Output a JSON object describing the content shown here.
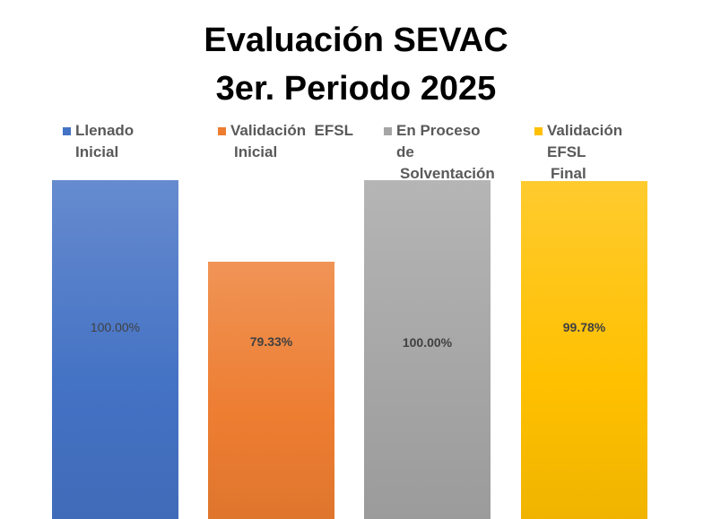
{
  "chart_data": {
    "type": "bar",
    "title": "Evaluación SEVAC",
    "subtitle": "3er. Periodo 2025",
    "categories": [
      "Llenado Inicial",
      "Validación  EFSL Inicial",
      "En Proceso de Solventación",
      "Validación EFSL Final"
    ],
    "values": [
      100.0,
      79.33,
      100.0,
      99.78
    ],
    "data_labels": [
      "100.00%",
      "79.33%",
      "100.00%",
      "99.78%"
    ],
    "colors": [
      "#4472C4",
      "#ED7D31",
      "#A5A5A5",
      "#FFC000"
    ],
    "legend": {
      "position": "top",
      "entries": [
        {
          "line1": "Llenado Inicial",
          "line2": ""
        },
        {
          "line1": "Validación  EFSL",
          "line2": "Inicial"
        },
        {
          "line1": "En Proceso de",
          "line2": "Solventación"
        },
        {
          "line1": "Validación EFSL",
          "line2": "Final"
        }
      ]
    },
    "grid": false,
    "xlabel": "",
    "ylabel": ""
  }
}
